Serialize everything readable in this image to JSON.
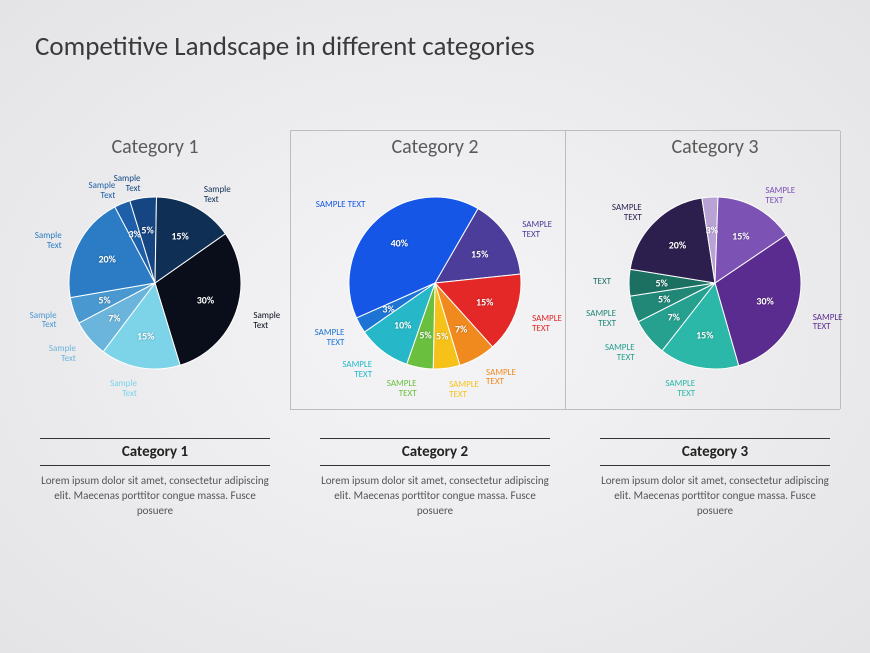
{
  "title": "Competitive Landscape in different categories",
  "background_gradient": [
    "#f5f5f7",
    "#e4e4e6"
  ],
  "grid_color": "#bdbdbd",
  "pie_radius": 86,
  "label_fontsize": 9,
  "pct_fontsize": 10,
  "title_fontsize": 27,
  "panel_title_fontsize": 20,
  "desc_title_fontsize": 15,
  "desc_text_fontsize": 11,
  "panels": [
    {
      "title": "Category 1",
      "desc_title": "Category 1",
      "desc_text": "Lorem ipsum dolor sit amet, consectetur adipiscing elit. Maecenas porttitor congue massa. Fusce posuere",
      "slices": [
        {
          "value": 30,
          "color": "#0a0e1a",
          "label": "Sample\nText"
        },
        {
          "value": 15,
          "color": "#7dd3e8",
          "label": "Sample\nText"
        },
        {
          "value": 7,
          "color": "#6bb5dd",
          "label": "Sample\nText"
        },
        {
          "value": 5,
          "color": "#4a98d0",
          "label": "Sample\nText"
        },
        {
          "value": 20,
          "color": "#2b7cc4",
          "label": "Sample\nText"
        },
        {
          "value": 3,
          "color": "#1d5fa8",
          "label": "Sample\nText"
        },
        {
          "value": 5,
          "color": "#154682",
          "label": "Sample\nText"
        },
        {
          "value": 15,
          "color": "#0f2f55",
          "label": "Sample\nText"
        }
      ],
      "start_angle": -35
    },
    {
      "title": "Category 2",
      "desc_title": "Category 2",
      "desc_text": "Lorem ipsum dolor sit amet, consectetur adipiscing elit. Maecenas porttitor congue massa. Fusce posuere",
      "slices": [
        {
          "value": 15,
          "color": "#4b3d99",
          "label": "SAMPLE TEXT"
        },
        {
          "value": 15,
          "color": "#e42828",
          "label": "SAMPLE\nTEXT"
        },
        {
          "value": 7,
          "color": "#f08a1f",
          "label": "SAMPLE\nTEXT"
        },
        {
          "value": 5,
          "color": "#f6c21a",
          "label": "SAMPLE\nTEXT"
        },
        {
          "value": 5,
          "color": "#6abf3f",
          "label": "SAMPLE\nTEXT"
        },
        {
          "value": 10,
          "color": "#26b8c8",
          "label": "SAMPLE\nTEXT"
        },
        {
          "value": 3,
          "color": "#1d74d4",
          "label": "SAMPLE\nTEXT"
        },
        {
          "value": 40,
          "color": "#1556e6",
          "label": "SAMPLE TEXT"
        }
      ],
      "start_angle": -60
    },
    {
      "title": "Category 3",
      "desc_title": "Category 3",
      "desc_text": "Lorem ipsum dolor sit amet, consectetur adipiscing elit. Maecenas porttitor congue massa. Fusce posuere",
      "slices": [
        {
          "value": 30,
          "color": "#5b2c8f",
          "label": "SAMPLE\nTEXT"
        },
        {
          "value": 15,
          "color": "#2bb8a8",
          "label": "SAMPLE\nTEXT"
        },
        {
          "value": 7,
          "color": "#26a08f",
          "label": "SAMPLE\nTEXT"
        },
        {
          "value": 5,
          "color": "#218878",
          "label": "SAMPLE\nTEXT"
        },
        {
          "value": 5,
          "color": "#1c7062",
          "label": "TEXT"
        },
        {
          "value": 20,
          "color": "#2d1f4d",
          "label": "SAMPLE\nTEXT"
        },
        {
          "value": 3,
          "color": "#b8a3d4",
          "label": ""
        },
        {
          "value": 15,
          "color": "#7d52b5",
          "label": "SAMPLE\nTEXT"
        }
      ],
      "start_angle": -34
    }
  ]
}
